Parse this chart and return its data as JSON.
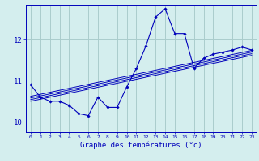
{
  "xlabel": "Graphe des températures (°c)",
  "background_color": "#d4eeee",
  "grid_color": "#aacccc",
  "line_color": "#0000bb",
  "xlim": [
    -0.5,
    23.5
  ],
  "ylim": [
    9.75,
    12.85
  ],
  "yticks": [
    10,
    11,
    12
  ],
  "xticks": [
    0,
    1,
    2,
    3,
    4,
    5,
    6,
    7,
    8,
    9,
    10,
    11,
    12,
    13,
    14,
    15,
    16,
    17,
    18,
    19,
    20,
    21,
    22,
    23
  ],
  "main_x": [
    0,
    1,
    2,
    3,
    4,
    5,
    6,
    7,
    8,
    9,
    10,
    11,
    12,
    13,
    14,
    15,
    16,
    17,
    18,
    19,
    20,
    21,
    22,
    23
  ],
  "main_y": [
    10.9,
    10.6,
    10.5,
    10.5,
    10.4,
    10.2,
    10.15,
    10.6,
    10.35,
    10.35,
    10.85,
    11.3,
    11.85,
    12.55,
    12.75,
    12.15,
    12.15,
    11.3,
    11.55,
    11.65,
    11.7,
    11.75,
    11.82,
    11.75
  ],
  "trend_lines": [
    {
      "x": [
        0,
        23
      ],
      "y": [
        10.5,
        11.62
      ]
    },
    {
      "x": [
        0,
        23
      ],
      "y": [
        10.54,
        11.66
      ]
    },
    {
      "x": [
        0,
        23
      ],
      "y": [
        10.58,
        11.7
      ]
    },
    {
      "x": [
        0,
        23
      ],
      "y": [
        10.62,
        11.74
      ]
    }
  ]
}
